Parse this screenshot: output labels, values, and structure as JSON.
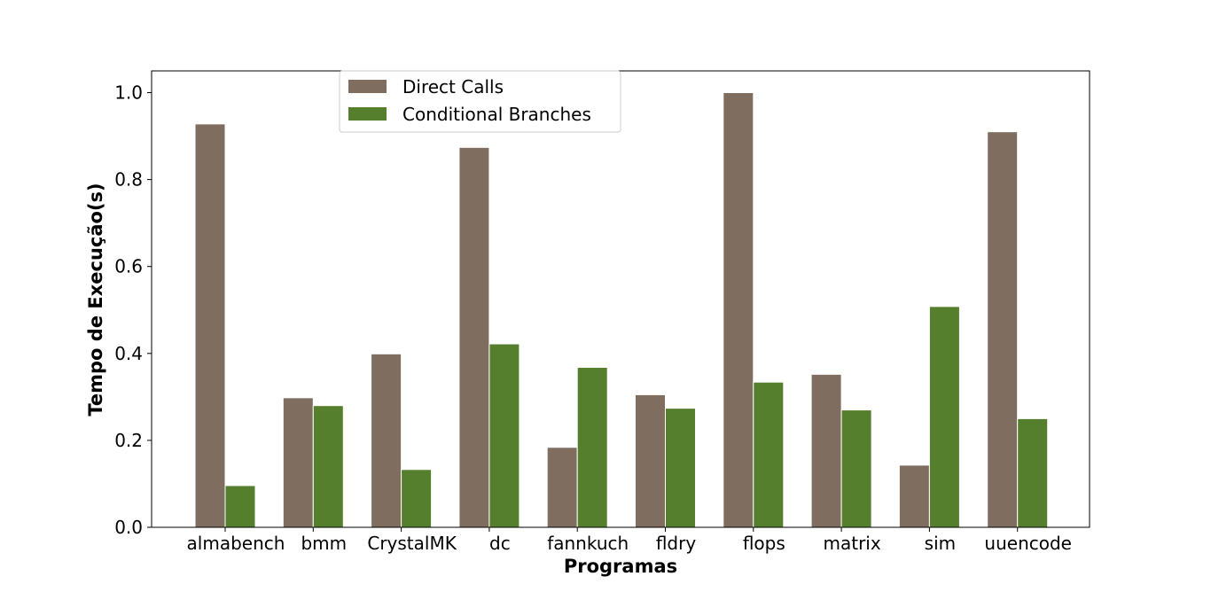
{
  "chart_data": {
    "type": "bar",
    "xlabel": "Programas",
    "ylabel": "Tempo de Execução(s)",
    "ylim": [
      0,
      1.05
    ],
    "yticks": [
      "0.0",
      "0.2",
      "0.4",
      "0.6",
      "0.8",
      "1.0"
    ],
    "categories": [
      "almabench",
      "bmm",
      "CrystalMK",
      "dc",
      "fannkuch",
      "fldry",
      "flops",
      "matrix",
      "sim",
      "uuencode"
    ],
    "series": [
      {
        "name": "Direct Calls",
        "color": "#7f6d5f",
        "values": [
          0.928,
          0.298,
          0.399,
          0.874,
          0.184,
          0.305,
          1.0,
          0.352,
          0.143,
          0.91
        ]
      },
      {
        "name": "Conditional Branches",
        "color": "#557f2d",
        "values": [
          0.096,
          0.28,
          0.133,
          0.422,
          0.368,
          0.274,
          0.334,
          0.27,
          0.508,
          0.25
        ]
      }
    ],
    "legend": "top-left",
    "grid": false
  }
}
